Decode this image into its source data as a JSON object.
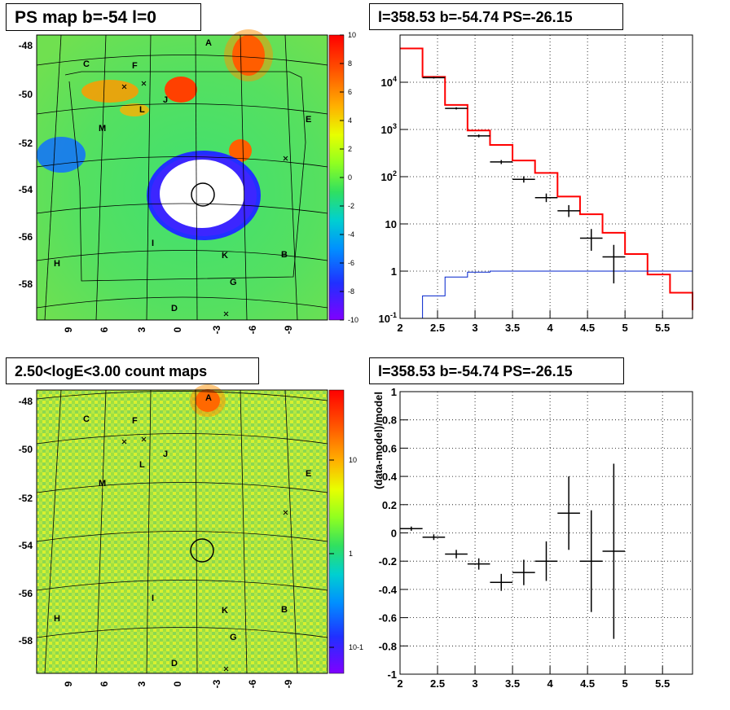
{
  "panels": {
    "top_left_title": "PS map b=-54 l=0",
    "top_right_title": "l=358.53 b=-54.74 PS=-26.15",
    "bottom_left_title": "2.50<logE<3.00 count maps",
    "bottom_right_title": "l=358.53 b=-54.74 PS=-26.15"
  },
  "map_axes": {
    "y_ticks": [
      "-48",
      "-50",
      "-52",
      "-54",
      "-56",
      "-58"
    ],
    "x_ticks": [
      "9",
      "6",
      "3",
      "0",
      "-3",
      "-6",
      "-9"
    ]
  },
  "source_labels": [
    "A",
    "B",
    "C",
    "D",
    "E",
    "F",
    "G",
    "H",
    "I",
    "J",
    "K",
    "L",
    "M"
  ],
  "ps_colorbar": {
    "ticks": [
      "10",
      "8",
      "6",
      "4",
      "2",
      "0",
      "-2",
      "-4",
      "-6",
      "-8",
      "-10"
    ]
  },
  "count_colorbar": {
    "ticks": [
      "10",
      "1",
      "10-1"
    ]
  },
  "chart_data": [
    {
      "type": "step",
      "title": "l=358.53 b=-54.74 PS=-26.15",
      "xlabel": "",
      "ylabel": "",
      "xlim": [
        2,
        5.9
      ],
      "ylim": [
        0.1,
        100000
      ],
      "yscale": "log",
      "grid": true,
      "x_ticks": [
        "2",
        "2.5",
        "3",
        "3.5",
        "4",
        "4.5",
        "5",
        "5.5"
      ],
      "y_ticks": [
        "10^-1",
        "1",
        "10",
        "10^2",
        "10^3",
        "10^4"
      ],
      "bin_edges": [
        2.0,
        2.3,
        2.6,
        2.9,
        3.2,
        3.5,
        3.8,
        4.1,
        4.4,
        4.7,
        5.0,
        5.3,
        5.6,
        5.9
      ],
      "series": [
        {
          "values": [
            52000,
            13000,
            3300,
            950,
            470,
            220,
            120,
            38,
            16,
            6.5,
            2.3,
            0.85,
            0.35,
            0.15
          ]
        },
        {
          "values": [
            0.02,
            0.3,
            0.75,
            0.95,
            1.0,
            1.0,
            1.0,
            1.0,
            1.0,
            1.0,
            1.0,
            1.0,
            1.0,
            1.0
          ]
        }
      ],
      "data_points": [
        {
          "x": 2.45,
          "y": 12500,
          "ylo": 12000,
          "yhi": 13000
        },
        {
          "x": 2.75,
          "y": 2800,
          "ylo": 2650,
          "yhi": 2950
        },
        {
          "x": 3.05,
          "y": 730,
          "ylo": 680,
          "yhi": 780
        },
        {
          "x": 3.35,
          "y": 205,
          "ylo": 185,
          "yhi": 225
        },
        {
          "x": 3.65,
          "y": 88,
          "ylo": 75,
          "yhi": 102
        },
        {
          "x": 3.95,
          "y": 36,
          "ylo": 29,
          "yhi": 44
        },
        {
          "x": 4.25,
          "y": 19,
          "ylo": 14,
          "yhi": 25
        },
        {
          "x": 4.55,
          "y": 5,
          "ylo": 2.7,
          "yhi": 7.8
        },
        {
          "x": 4.85,
          "y": 2,
          "ylo": 0.55,
          "yhi": 3.6
        }
      ]
    },
    {
      "type": "scatter",
      "title": "l=358.53 b=-54.74 PS=-26.15",
      "xlabel": "",
      "ylabel": "(data-model)/model",
      "xlim": [
        2,
        5.9
      ],
      "ylim": [
        -1,
        1
      ],
      "grid": true,
      "x_ticks": [
        "2",
        "2.5",
        "3",
        "3.5",
        "4",
        "4.5",
        "5",
        "5.5"
      ],
      "y_ticks": [
        "1",
        "0.8",
        "0.6",
        "0.4",
        "0.2",
        "0",
        "-0.2",
        "-0.4",
        "-0.6",
        "-0.8",
        "-1"
      ],
      "points": [
        {
          "x": 2.15,
          "y": 0.03,
          "err": 0.015
        },
        {
          "x": 2.45,
          "y": -0.03,
          "err": 0.02
        },
        {
          "x": 2.75,
          "y": -0.15,
          "err": 0.03
        },
        {
          "x": 3.05,
          "y": -0.22,
          "err": 0.04
        },
        {
          "x": 3.35,
          "y": -0.35,
          "err": 0.06
        },
        {
          "x": 3.65,
          "y": -0.28,
          "err": 0.09
        },
        {
          "x": 3.95,
          "y": -0.2,
          "err": 0.14
        },
        {
          "x": 4.25,
          "y": 0.14,
          "err": 0.26
        },
        {
          "x": 4.55,
          "y": -0.2,
          "err": 0.36
        },
        {
          "x": 4.85,
          "y": -0.13,
          "err": 0.62
        }
      ]
    }
  ]
}
